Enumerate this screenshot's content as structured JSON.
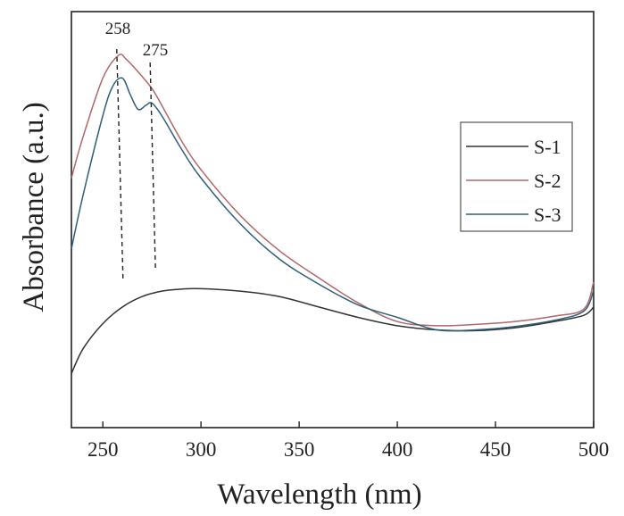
{
  "chart_data": {
    "type": "line",
    "xlabel": "Wavelength (nm)",
    "ylabel": "Absorbance (a.u.)",
    "xlim": [
      234,
      500
    ],
    "ylim": [
      0,
      1
    ],
    "xticks": [
      250,
      300,
      350,
      400,
      450,
      500
    ],
    "x_tick_labels": [
      "250",
      "300",
      "350",
      "400",
      "450",
      "500"
    ],
    "y_tick_labels_shown": false,
    "grid": false,
    "legend": {
      "position": "right",
      "entries": [
        {
          "label": "S-1",
          "color": "#333333"
        },
        {
          "label": "S-2",
          "color": "#b06868"
        },
        {
          "label": "S-3",
          "color": "#2f5f7a"
        }
      ]
    },
    "annotations": [
      {
        "text": "258",
        "x": 258,
        "style": "dashed-vertical"
      },
      {
        "text": "275",
        "x": 275,
        "style": "dashed-vertical"
      }
    ],
    "series": [
      {
        "name": "S-1",
        "color": "#333333",
        "x": [
          234,
          240,
          250,
          260,
          270,
          280,
          290,
          300,
          320,
          340,
          360,
          380,
          400,
          420,
          440,
          460,
          480,
          495,
          500
        ],
        "y": [
          0.13,
          0.19,
          0.25,
          0.29,
          0.315,
          0.328,
          0.333,
          0.334,
          0.328,
          0.315,
          0.29,
          0.265,
          0.245,
          0.235,
          0.233,
          0.24,
          0.255,
          0.27,
          0.29
        ]
      },
      {
        "name": "S-2",
        "color": "#b06868",
        "x": [
          234,
          240,
          250,
          258,
          262,
          268,
          275,
          280,
          290,
          300,
          320,
          340,
          360,
          380,
          400,
          420,
          440,
          460,
          480,
          495,
          500
        ],
        "y": [
          0.6,
          0.7,
          0.84,
          0.895,
          0.885,
          0.855,
          0.815,
          0.775,
          0.69,
          0.62,
          0.51,
          0.425,
          0.36,
          0.3,
          0.255,
          0.245,
          0.248,
          0.255,
          0.268,
          0.285,
          0.35
        ]
      },
      {
        "name": "S-3",
        "color": "#2f5f7a",
        "x": [
          234,
          240,
          250,
          255,
          260,
          264,
          268,
          272,
          275,
          280,
          290,
          300,
          320,
          340,
          360,
          380,
          400,
          420,
          440,
          460,
          480,
          495,
          500
        ],
        "y": [
          0.43,
          0.56,
          0.75,
          0.82,
          0.84,
          0.8,
          0.765,
          0.775,
          0.78,
          0.75,
          0.67,
          0.6,
          0.49,
          0.405,
          0.345,
          0.295,
          0.265,
          0.235,
          0.235,
          0.243,
          0.258,
          0.28,
          0.33
        ]
      }
    ]
  }
}
